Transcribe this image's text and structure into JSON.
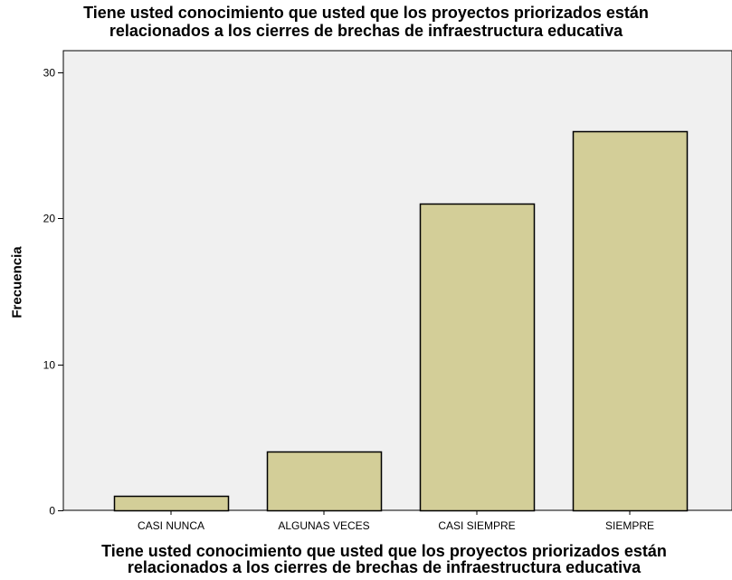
{
  "chart_data": {
    "type": "bar",
    "title": [
      "Tiene usted conocimiento que usted que los proyectos priorizados están",
      "relacionados a los cierres de brechas de infraestructura educativa"
    ],
    "xlabel": [
      "Tiene usted conocimiento que usted que los proyectos priorizados están",
      "relacionados a los cierres de brechas de infraestructura educativa"
    ],
    "ylabel": "Frecuencia",
    "categories": [
      "CASI NUNCA",
      "ALGUNAS VECES",
      "CASI SIEMPRE",
      "SIEMPRE"
    ],
    "values": [
      1,
      4,
      21,
      26
    ],
    "ylim": [
      0,
      31.5
    ],
    "yticks": [
      0,
      10,
      20,
      30
    ],
    "grid": false,
    "legend": "none",
    "bar_color": "#d3ce98",
    "bar_edge_color": "#000000",
    "plot_background": "#f0f0f0"
  }
}
